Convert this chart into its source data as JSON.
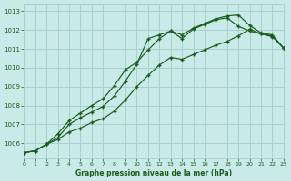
{
  "title": "Graphe pression niveau de la mer (hPa)",
  "bg_color": "#c8eae8",
  "grid_color": "#a8d0cc",
  "line_color": "#1a5c1a",
  "xlim": [
    0,
    23
  ],
  "ylim": [
    1005.2,
    1013.4
  ],
  "xticks": [
    0,
    1,
    2,
    3,
    4,
    5,
    6,
    7,
    8,
    9,
    10,
    11,
    12,
    13,
    14,
    15,
    16,
    17,
    18,
    19,
    20,
    21,
    22,
    23
  ],
  "yticks": [
    1006,
    1007,
    1008,
    1009,
    1010,
    1011,
    1012,
    1013
  ],
  "line_top": [
    1005.5,
    1005.6,
    1005.95,
    1006.5,
    1007.2,
    1007.6,
    1008.0,
    1008.35,
    1009.05,
    1009.9,
    1010.3,
    1010.95,
    1011.55,
    1011.95,
    1011.75,
    1012.1,
    1012.35,
    1012.6,
    1012.75,
    1012.8,
    1012.25,
    1011.85,
    1011.75,
    1011.05
  ],
  "line_mid": [
    1005.5,
    1005.6,
    1005.95,
    1006.3,
    1007.0,
    1007.35,
    1007.65,
    1007.95,
    1008.5,
    1009.3,
    1010.2,
    1011.55,
    1011.75,
    1011.95,
    1011.55,
    1012.05,
    1012.3,
    1012.55,
    1012.65,
    1012.2,
    1011.95,
    1011.8,
    1011.7,
    1011.05
  ],
  "line_bot": [
    1005.5,
    1005.6,
    1005.95,
    1006.2,
    1006.6,
    1006.8,
    1007.1,
    1007.3,
    1007.7,
    1008.3,
    1009.0,
    1009.6,
    1010.15,
    1010.55,
    1010.45,
    1010.7,
    1010.95,
    1011.2,
    1011.4,
    1011.7,
    1012.05,
    1011.8,
    1011.65,
    1011.05
  ]
}
